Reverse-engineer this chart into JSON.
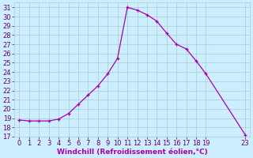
{
  "x": [
    0,
    1,
    2,
    3,
    4,
    5,
    6,
    7,
    8,
    9,
    10,
    11,
    12,
    13,
    14,
    15,
    16,
    17,
    18,
    19,
    23
  ],
  "y": [
    18.8,
    18.7,
    18.7,
    18.7,
    18.9,
    19.5,
    20.5,
    21.5,
    22.5,
    23.8,
    25.5,
    31.0,
    30.7,
    30.2,
    29.5,
    28.2,
    27.0,
    26.5,
    25.2,
    23.8,
    17.2
  ],
  "line_color": "#aa00aa",
  "marker_color": "#aa00aa",
  "bg_color": "#cceeff",
  "grid_color": "#aacccc",
  "xlabel": "Windchill (Refroidissement éolien,°C)",
  "xlim": [
    -0.5,
    23.5
  ],
  "ylim": [
    17,
    31.5
  ],
  "yticks": [
    17,
    18,
    19,
    20,
    21,
    22,
    23,
    24,
    25,
    26,
    27,
    28,
    29,
    30,
    31
  ],
  "xticks": [
    0,
    1,
    2,
    3,
    4,
    5,
    6,
    7,
    8,
    9,
    10,
    11,
    12,
    13,
    14,
    15,
    16,
    17,
    18,
    19,
    23
  ],
  "axis_label_color": "#aa00aa",
  "tick_label_color": "#660066",
  "font_size_xlabel": 6.5,
  "font_size_ticks": 6.0,
  "linewidth": 0.9,
  "markersize": 3.5
}
